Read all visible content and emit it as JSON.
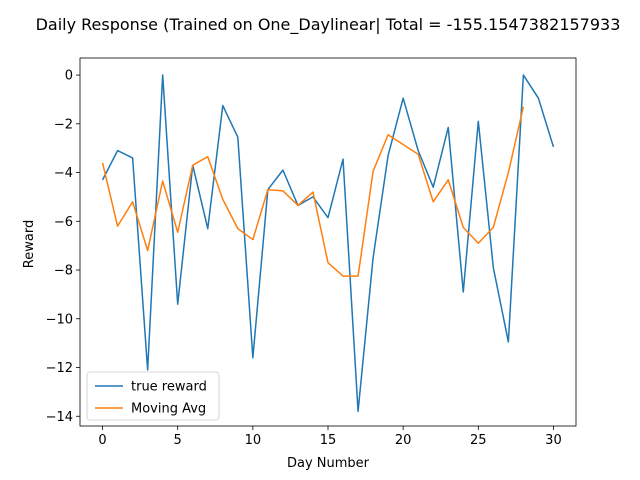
{
  "chart_data": {
    "type": "line",
    "title": "Daily Response (Trained on One_Daylinear| Total = -155.1547382157933",
    "xlabel": "Day Number",
    "ylabel": "Reward",
    "xlim": [
      -1.5,
      31.5
    ],
    "ylim": [
      -14.4,
      0.7
    ],
    "xticks": [
      0,
      5,
      10,
      15,
      20,
      25,
      30
    ],
    "yticks": [
      0,
      -2,
      -4,
      -6,
      -8,
      -10,
      -12,
      -14
    ],
    "ytick_labels": [
      "0",
      "−2",
      "−4",
      "−6",
      "−8",
      "−10",
      "−12",
      "−14"
    ],
    "grid": false,
    "legend_position": "lower-left",
    "series": [
      {
        "name": "true reward",
        "color": "#1f77b4",
        "x": [
          0,
          1,
          2,
          3,
          4,
          5,
          6,
          7,
          8,
          9,
          10,
          11,
          12,
          13,
          14,
          15,
          16,
          17,
          18,
          19,
          20,
          21,
          22,
          23,
          24,
          25,
          26,
          27,
          28,
          29,
          30
        ],
        "y": [
          -4.3,
          -3.1,
          -3.4,
          -12.1,
          0.0,
          -9.4,
          -3.7,
          -6.3,
          -1.25,
          -2.55,
          -11.6,
          -4.7,
          -3.9,
          -5.35,
          -5.0,
          -5.85,
          -3.45,
          -13.8,
          -7.5,
          -3.3,
          -0.95,
          -3.1,
          -4.6,
          -2.15,
          -8.9,
          -1.9,
          -7.9,
          -10.95,
          0.0,
          -0.95,
          -2.95
        ]
      },
      {
        "name": "Moving Avg",
        "color": "#ff7f0e",
        "x": [
          0,
          1,
          2,
          3,
          4,
          5,
          6,
          7,
          8,
          9,
          10,
          11,
          12,
          13,
          14,
          15,
          16,
          17,
          18,
          19,
          20,
          21,
          22,
          23,
          24,
          25,
          26,
          27,
          28
        ],
        "y": [
          -3.6,
          -6.2,
          -5.2,
          -7.2,
          -4.35,
          -6.45,
          -3.7,
          -3.35,
          -5.1,
          -6.3,
          -6.75,
          -4.7,
          -4.75,
          -5.35,
          -4.8,
          -7.7,
          -8.25,
          -8.25,
          -3.95,
          -2.45,
          -2.85,
          -3.25,
          -5.2,
          -4.3,
          -6.25,
          -6.9,
          -6.25,
          -4.0,
          -1.3
        ]
      }
    ]
  }
}
